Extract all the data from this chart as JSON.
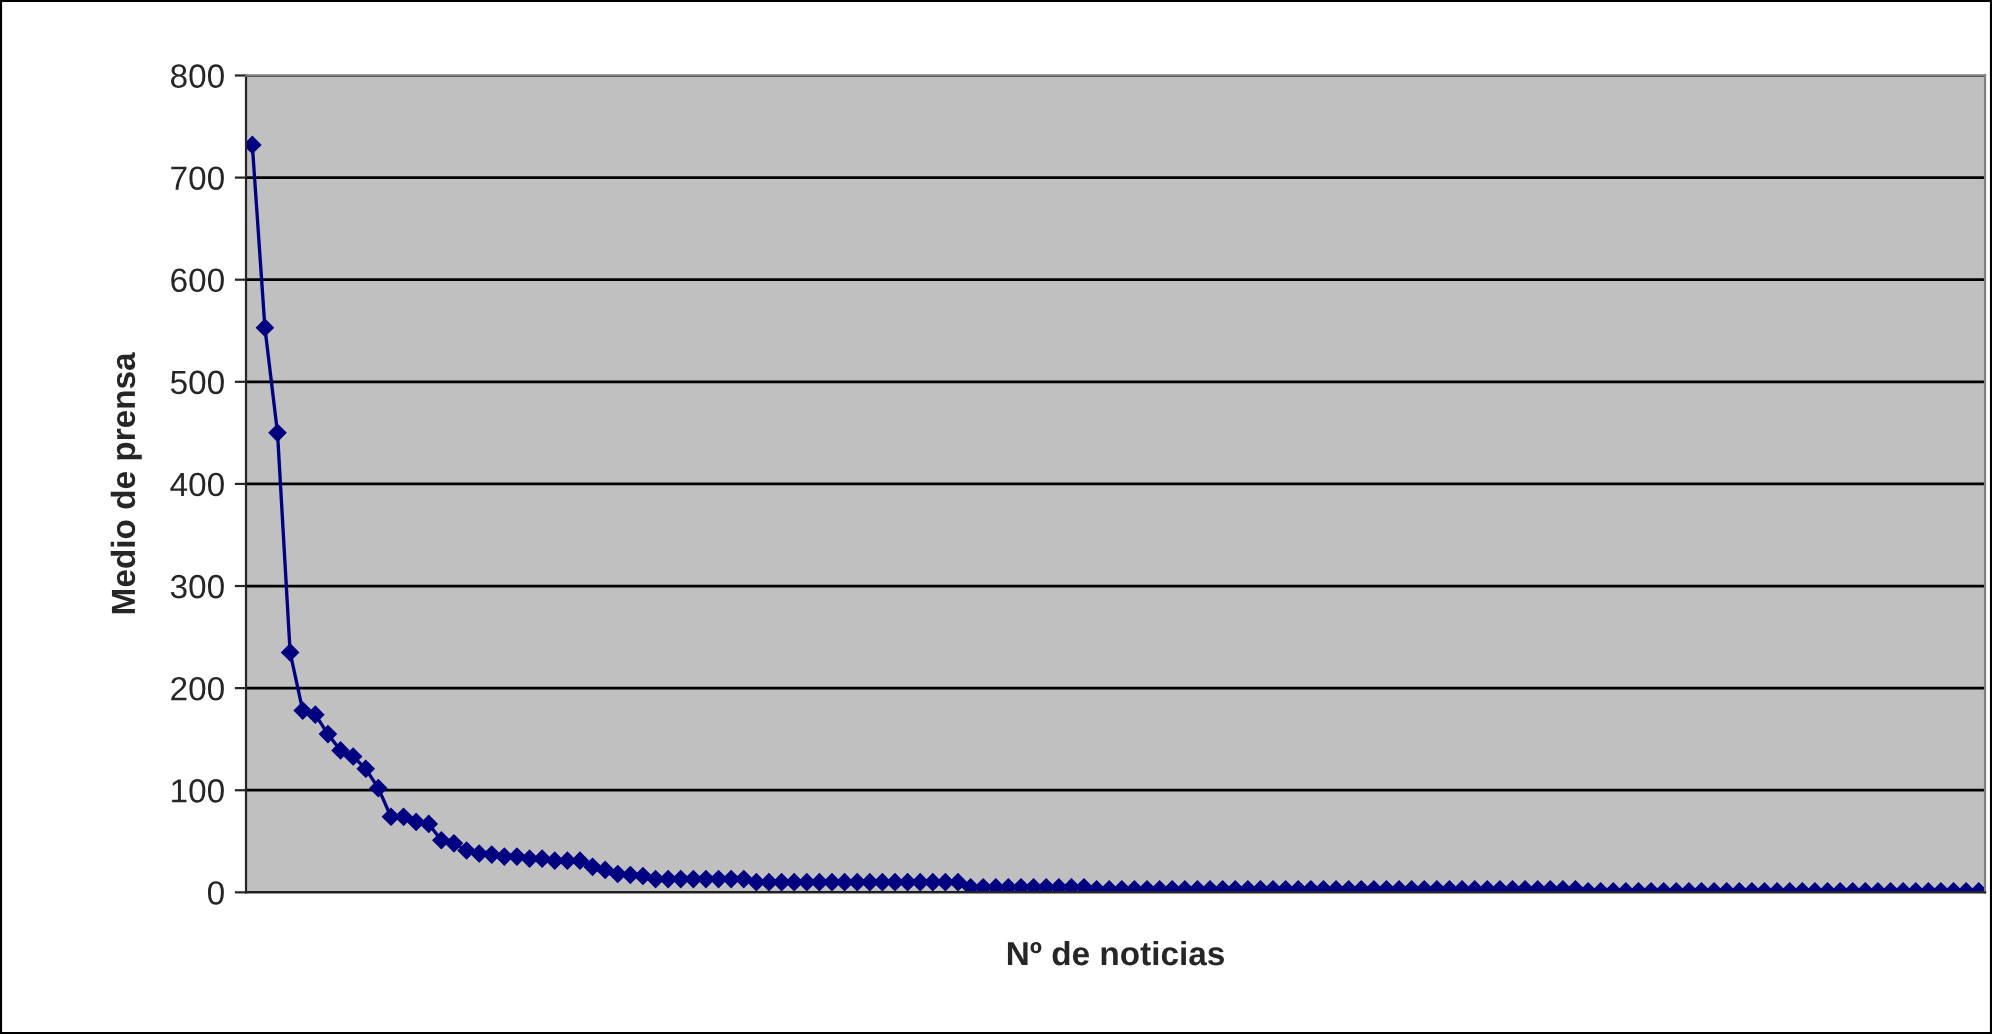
{
  "chart_data": {
    "type": "line",
    "xlabel": "Nº de noticias",
    "ylabel": "Medio de prensa",
    "categories": [
      null,
      null,
      null,
      null,
      null,
      null,
      null,
      null,
      null,
      null,
      null,
      null,
      null,
      null,
      null,
      null,
      null,
      null,
      null,
      null,
      null,
      null,
      null,
      null,
      null,
      null,
      null,
      null,
      null,
      null,
      null,
      null,
      null,
      null,
      null,
      null,
      null,
      null,
      null,
      null,
      null,
      null,
      null,
      null,
      null,
      null,
      null,
      null,
      null,
      null,
      null,
      null,
      null,
      null,
      null,
      null,
      null,
      null,
      null,
      null,
      null,
      null,
      null,
      null,
      null,
      null,
      null,
      null,
      null,
      null,
      null,
      null,
      null,
      null,
      null,
      null,
      null,
      null,
      null,
      null,
      null,
      null,
      null,
      null,
      null,
      null,
      null,
      null,
      null,
      null,
      null,
      null,
      null,
      null,
      null,
      null,
      null,
      null,
      null,
      null,
      null,
      null,
      null,
      null,
      null,
      null,
      null,
      null,
      null,
      null,
      null,
      null,
      null,
      null,
      null,
      null,
      null,
      null,
      null,
      null,
      null,
      null,
      null,
      null,
      null,
      null,
      null,
      null,
      null,
      null,
      null,
      null,
      null,
      null,
      null,
      null,
      null,
      null
    ],
    "series": [
      {
        "color": "#000080",
        "values": [
          732,
          553,
          450,
          235,
          178,
          174,
          155,
          139,
          133,
          121,
          102,
          74,
          74,
          69,
          67,
          51,
          48,
          41,
          38,
          37,
          35,
          35,
          33,
          33,
          31,
          31,
          31,
          25,
          22,
          18,
          17,
          16,
          13,
          13,
          13,
          13,
          13,
          13,
          13,
          13,
          10,
          10,
          10,
          10,
          10,
          10,
          10,
          10,
          10,
          10,
          10,
          10,
          10,
          10,
          10,
          10,
          10,
          5,
          5,
          5,
          5,
          5,
          5,
          5,
          5,
          5,
          5,
          3,
          3,
          3,
          3,
          3,
          3,
          3,
          3,
          3,
          3,
          3,
          3,
          3,
          3,
          3,
          3,
          3,
          3,
          3,
          3,
          3,
          3,
          3,
          3,
          3,
          3,
          3,
          3,
          3,
          3,
          3,
          3,
          3,
          3,
          3,
          3,
          3,
          3,
          3,
          1,
          1,
          1,
          1,
          1,
          1,
          1,
          1,
          1,
          1,
          1,
          1,
          1,
          1,
          1,
          1,
          1,
          1,
          1,
          1,
          1,
          1,
          1,
          1,
          1,
          1,
          1,
          1,
          1,
          1,
          1,
          1
        ]
      }
    ],
    "ylim": [
      0,
      800
    ],
    "yticks": [
      0,
      100,
      200,
      300,
      400,
      500,
      600,
      700,
      800
    ],
    "grid": "y",
    "marker": "diamond",
    "line_style": "solid",
    "tick_labels": "y",
    "legend": false
  }
}
